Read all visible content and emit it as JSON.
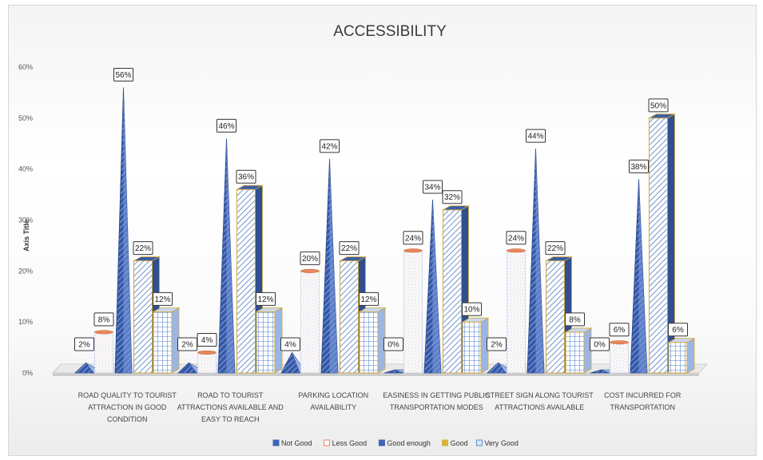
{
  "chart_data": {
    "type": "bar",
    "title": "ACCESSIBILITY",
    "ylabel": "Axis Title",
    "xlabel": "",
    "ylim": [
      0,
      60
    ],
    "yticks": [
      "0%",
      "10%",
      "20%",
      "30%",
      "40%",
      "50%",
      "60%"
    ],
    "grid": false,
    "legend_position": "bottom",
    "categories": [
      "ROAD QUALITY TO TOURIST ATTRACTION IN GOOD CONDITION",
      "ROAD TO TOURIST ATTRACTIONS AVAILABLE AND EASY TO REACH",
      "PARKING LOCATION AVAILABILITY",
      "EASINESS IN GETTING PUBLIC TRANSPORTATION MODES",
      "STREET SIGN ALONG TOURIST ATTRACTIONS AVAILABLE",
      "COST INCURRED FOR TRANSPORTATION"
    ],
    "category_lines": [
      [
        "ROAD QUALITY TO TOURIST",
        "ATTRACTION IN GOOD",
        "CONDITION"
      ],
      [
        "ROAD TO TOURIST",
        "ATTRACTIONS AVAILABLE AND",
        "EASY TO REACH"
      ],
      [
        "PARKING LOCATION",
        "AVAILABILITY"
      ],
      [
        "EASINESS IN GETTING PUBLIC",
        "TRANSPORTATION MODES"
      ],
      [
        "STREET SIGN ALONG TOURIST",
        "ATTRACTIONS AVAILABLE"
      ],
      [
        "COST INCURRED FOR",
        "TRANSPORTATION"
      ]
    ],
    "series": [
      {
        "name": "Not Good",
        "values": [
          2,
          2,
          4,
          0,
          2,
          0
        ],
        "labels": [
          "2%",
          "2%",
          "4%",
          "0%",
          "2%",
          "0%"
        ],
        "color": "#4a78c8",
        "shape": "pyramid"
      },
      {
        "name": "Less Good",
        "values": [
          8,
          4,
          20,
          24,
          24,
          6
        ],
        "labels": [
          "8%",
          "4%",
          "20%",
          "24%",
          "24%",
          "6%"
        ],
        "color": "#e8875a",
        "shape": "cylinder"
      },
      {
        "name": "Good enough",
        "values": [
          56,
          46,
          42,
          34,
          44,
          38
        ],
        "labels": [
          "56%",
          "46%",
          "42%",
          "34%",
          "44%",
          "38%"
        ],
        "color": "#3f64b8",
        "shape": "cone"
      },
      {
        "name": "Good",
        "values": [
          22,
          36,
          22,
          32,
          22,
          50
        ],
        "labels": [
          "22%",
          "36%",
          "22%",
          "32%",
          "22%",
          "50%"
        ],
        "color": "#d9b23a",
        "shape": "box"
      },
      {
        "name": "Very Good",
        "values": [
          12,
          12,
          12,
          10,
          8,
          6
        ],
        "labels": [
          "12%",
          "12%",
          "12%",
          "10%",
          "8%",
          "6%"
        ],
        "color": "#5b8fd6",
        "shape": "box"
      }
    ]
  }
}
